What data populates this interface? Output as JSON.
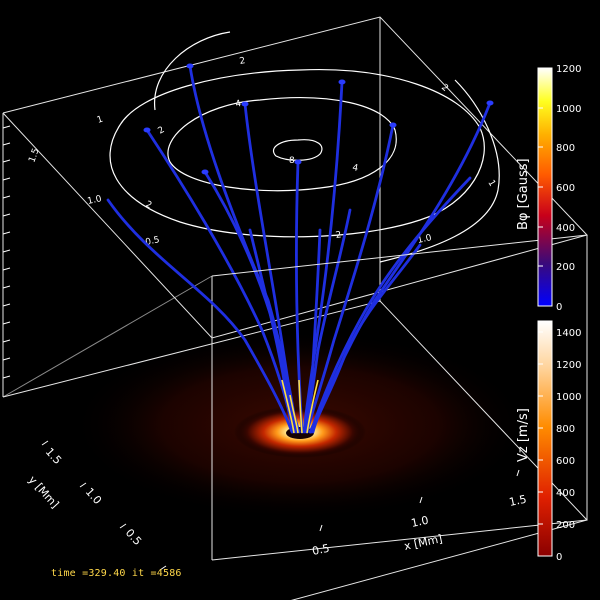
{
  "x_axis": {
    "label": "x [Mm]",
    "ticks": [
      "0.5",
      "1.0",
      "1.5"
    ]
  },
  "y_axis": {
    "label": "y [Mm]",
    "ticks": [
      "0.5",
      "1.0",
      "1.5"
    ]
  },
  "contours": {
    "line_labels": [
      "1",
      "1",
      "2",
      "2",
      "2",
      "2",
      "2",
      "4",
      "4",
      "8"
    ],
    "top_box_ticks": [
      "1.0",
      "1.5",
      "0.5",
      "1.0"
    ]
  },
  "colorbar_b": {
    "label": "Bφ [Gauss]",
    "ticks": [
      "0",
      "200",
      "400",
      "600",
      "800",
      "1000",
      "1200"
    ],
    "colormap": "blue-purple-red-orange-yellow-white"
  },
  "colorbar_vz": {
    "label": "Vz [m/s]",
    "ticks": [
      "0",
      "200",
      "400",
      "600",
      "800",
      "1000",
      "1200",
      "1400"
    ],
    "colormap": "dark-red-orange-white"
  },
  "status": {
    "text": "time =329.40 it =4586"
  },
  "colors": {
    "field_lines": "#1f2fe0",
    "contours": "#ffffff",
    "box": "#e6e6e6",
    "timestamp": "#ffd84a"
  }
}
